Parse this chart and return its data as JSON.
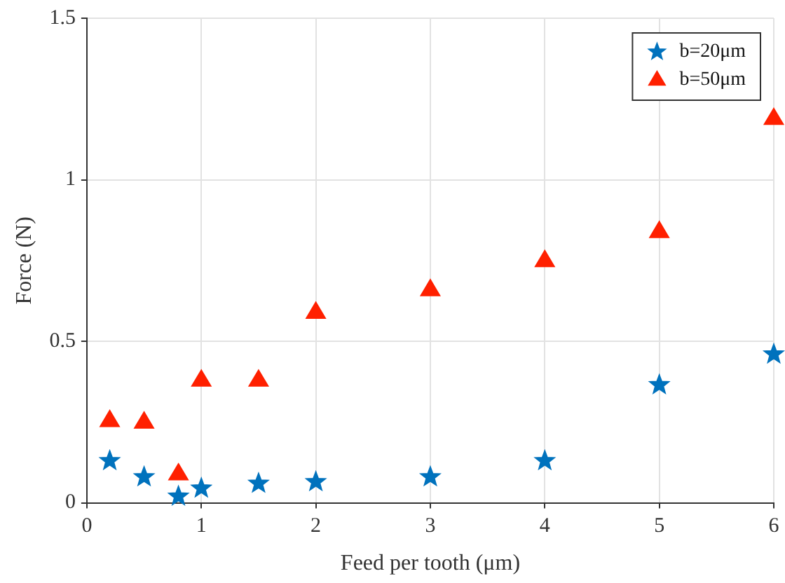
{
  "chart_data": {
    "type": "scatter",
    "xlabel": "Feed per tooth (μm)",
    "ylabel": "Force (N)",
    "x": [
      0.2,
      0.5,
      0.8,
      1,
      1.5,
      2,
      3,
      4,
      5,
      6
    ],
    "series": [
      {
        "name": "b=20μm",
        "color": "#0072bd",
        "marker": "star",
        "values": [
          0.13,
          0.08,
          0.02,
          0.045,
          0.06,
          0.065,
          0.08,
          0.13,
          0.365,
          0.46
        ]
      },
      {
        "name": "b=50μm",
        "color": "#ff2000",
        "marker": "triangle",
        "values": [
          0.255,
          0.25,
          0.09,
          0.38,
          0.38,
          0.59,
          0.66,
          0.75,
          0.84,
          1.19
        ]
      }
    ],
    "xlim": [
      0,
      6
    ],
    "xticks": [
      0,
      1,
      2,
      3,
      4,
      5,
      6
    ],
    "ylim": [
      0,
      1.5
    ],
    "yticks": [
      0,
      0.5,
      1,
      1.5
    ],
    "grid": true,
    "legend": "top right"
  }
}
